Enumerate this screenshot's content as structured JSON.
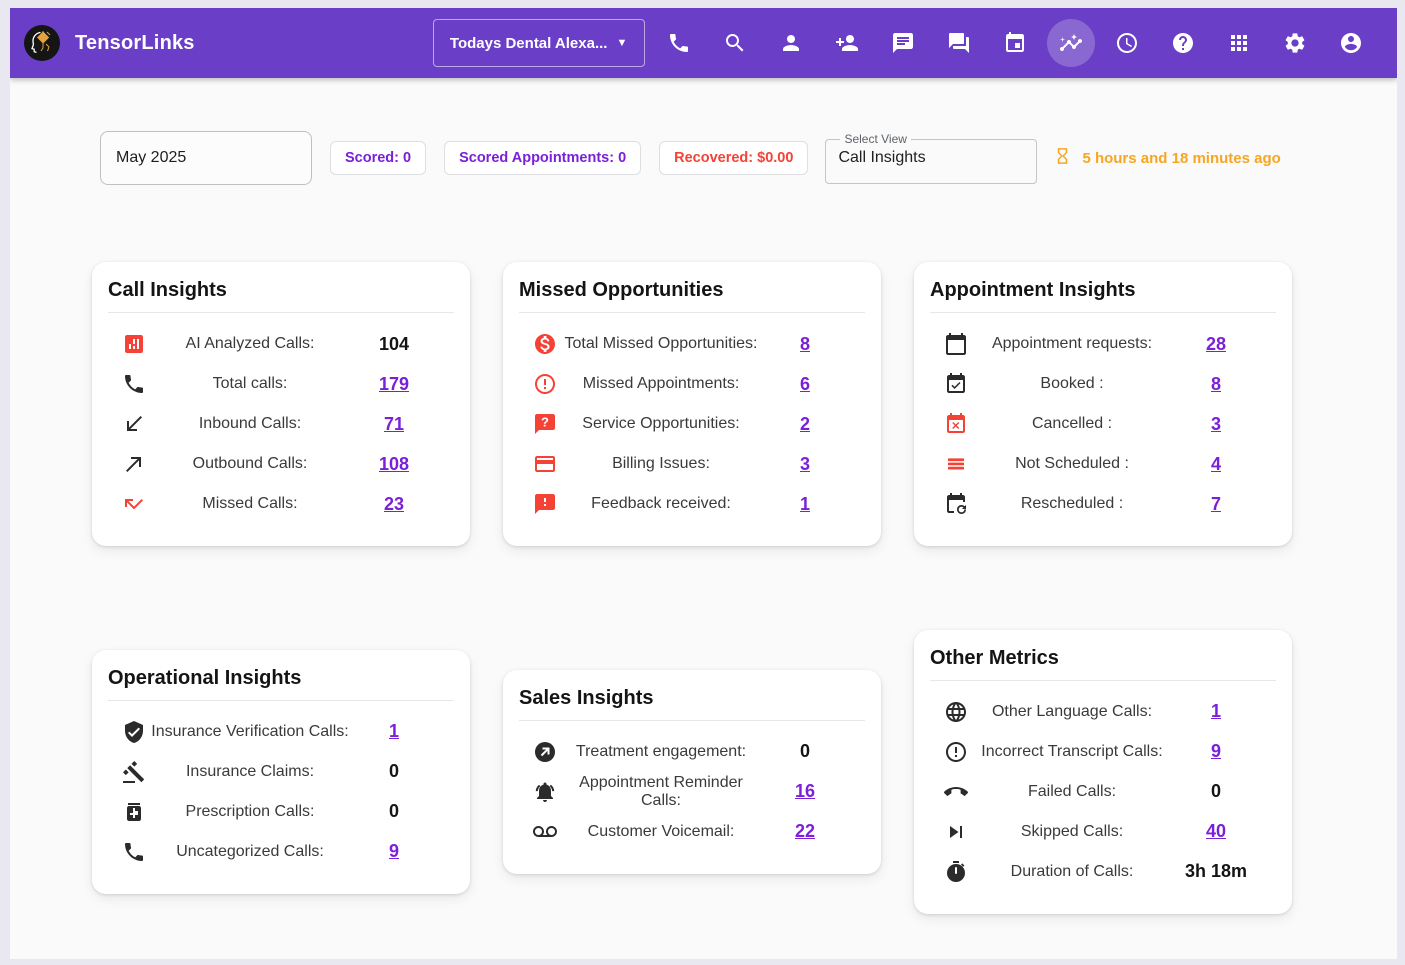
{
  "colors": {
    "header": "#6A3EC6",
    "header_active": "rgba(255,255,255,0.22)",
    "link": "#7B1FD9",
    "red": "#F44336",
    "orange": "#F5A623"
  },
  "header": {
    "brand": "TensorLinks",
    "location_selector": "Todays Dental Alexa...",
    "icons": [
      {
        "name": "phone-icon"
      },
      {
        "name": "search-icon"
      },
      {
        "name": "person-icon"
      },
      {
        "name": "person-add-icon"
      },
      {
        "name": "chat-icon"
      },
      {
        "name": "forum-icon"
      },
      {
        "name": "calendar-event-icon"
      },
      {
        "name": "insights-icon",
        "active": true
      },
      {
        "name": "history-clock-icon"
      },
      {
        "name": "help-icon"
      },
      {
        "name": "apps-grid-icon"
      },
      {
        "name": "settings-icon"
      },
      {
        "name": "account-icon"
      }
    ]
  },
  "toolbar": {
    "month": "May 2025",
    "chips": [
      {
        "text": "Scored: 0",
        "style": "purple"
      },
      {
        "text": "Scored Appointments: 0",
        "style": "purple"
      },
      {
        "text": "Recovered: $0.00",
        "style": "red"
      }
    ],
    "select_view": {
      "label": "Select View",
      "value": "Call Insights"
    },
    "last_updated": "5 hours and 18 minutes ago"
  },
  "cards": [
    {
      "title": "Call Insights",
      "row_group": 1,
      "rows": [
        {
          "icon": "analytics-icon",
          "tone": "red",
          "label": "AI Analyzed Calls:",
          "value": "104",
          "link": false
        },
        {
          "icon": "call-icon",
          "tone": "dark",
          "label": "Total calls:",
          "value": "179",
          "link": true
        },
        {
          "icon": "call-received-icon",
          "tone": "dark",
          "label": "Inbound Calls:",
          "value": "71",
          "link": true
        },
        {
          "icon": "call-made-icon",
          "tone": "dark",
          "label": "Outbound Calls:",
          "value": "108",
          "link": true
        },
        {
          "icon": "call-missed-icon",
          "tone": "red",
          "label": "Missed Calls:",
          "value": "23",
          "link": true
        }
      ]
    },
    {
      "title": "Missed Opportunities",
      "row_group": 1,
      "rows": [
        {
          "icon": "dollar-circle-icon",
          "tone": "red",
          "label": "Total Missed Opportunities:",
          "value": "8",
          "link": true
        },
        {
          "icon": "error-outline-icon",
          "tone": "red",
          "label": "Missed Appointments:",
          "value": "6",
          "link": true
        },
        {
          "icon": "question-bubble-icon",
          "tone": "red",
          "label": "Service Opportunities:",
          "value": "2",
          "link": true
        },
        {
          "icon": "credit-card-icon",
          "tone": "red",
          "label": "Billing Issues:",
          "value": "3",
          "link": true
        },
        {
          "icon": "feedback-bubble-icon",
          "tone": "red",
          "label": "Feedback received:",
          "value": "1",
          "link": true
        }
      ]
    },
    {
      "title": "Appointment Insights",
      "row_group": 1,
      "rows": [
        {
          "icon": "calendar-icon",
          "tone": "dark",
          "label": "Appointment requests:",
          "value": "28",
          "link": true
        },
        {
          "icon": "event-available-icon",
          "tone": "dark",
          "label": "Booked :",
          "value": "8",
          "link": true
        },
        {
          "icon": "event-busy-icon",
          "tone": "red",
          "label": "Cancelled :",
          "value": "3",
          "link": true
        },
        {
          "icon": "reorder-lines-icon",
          "tone": "red",
          "label": "Not Scheduled :",
          "value": "4",
          "link": true
        },
        {
          "icon": "event-repeat-icon",
          "tone": "dark",
          "label": "Rescheduled :",
          "value": "7",
          "link": true
        }
      ]
    },
    {
      "title": "Operational Insights",
      "row_group": 2,
      "rows": [
        {
          "icon": "shield-check-icon",
          "tone": "dark",
          "label": "Insurance Verification Calls:",
          "value": "1",
          "link": true
        },
        {
          "icon": "gavel-icon",
          "tone": "dark",
          "label": "Insurance Claims:",
          "value": "0",
          "link": false
        },
        {
          "icon": "medication-icon",
          "tone": "dark",
          "label": "Prescription Calls:",
          "value": "0",
          "link": false
        },
        {
          "icon": "call-icon",
          "tone": "dark",
          "label": "Uncategorized Calls:",
          "value": "9",
          "link": true
        }
      ]
    },
    {
      "title": "Sales Insights",
      "row_group": 2,
      "rows": [
        {
          "icon": "arrow-circle-icon",
          "tone": "dark",
          "label": "Treatment engagement:",
          "value": "0",
          "link": false
        },
        {
          "icon": "bell-icon",
          "tone": "dark",
          "label": "Appointment Reminder Calls:",
          "value": "16",
          "link": true
        },
        {
          "icon": "voicemail-icon",
          "tone": "dark",
          "label": "Customer Voicemail:",
          "value": "22",
          "link": true
        }
      ]
    },
    {
      "title": "Other Metrics",
      "row_group": 2,
      "rows": [
        {
          "icon": "globe-icon",
          "tone": "dark",
          "label": "Other Language Calls:",
          "value": "1",
          "link": true
        },
        {
          "icon": "error-outline-icon",
          "tone": "dark",
          "label": "Incorrect Transcript Calls:",
          "value": "9",
          "link": true
        },
        {
          "icon": "call-end-icon",
          "tone": "dark",
          "label": "Failed Calls:",
          "value": "0",
          "link": false
        },
        {
          "icon": "skip-next-icon",
          "tone": "dark",
          "label": "Skipped Calls:",
          "value": "40",
          "link": true
        },
        {
          "icon": "timer-icon",
          "tone": "dark",
          "label": "Duration of Calls:",
          "value": "3h 18m",
          "link": false
        }
      ]
    }
  ]
}
